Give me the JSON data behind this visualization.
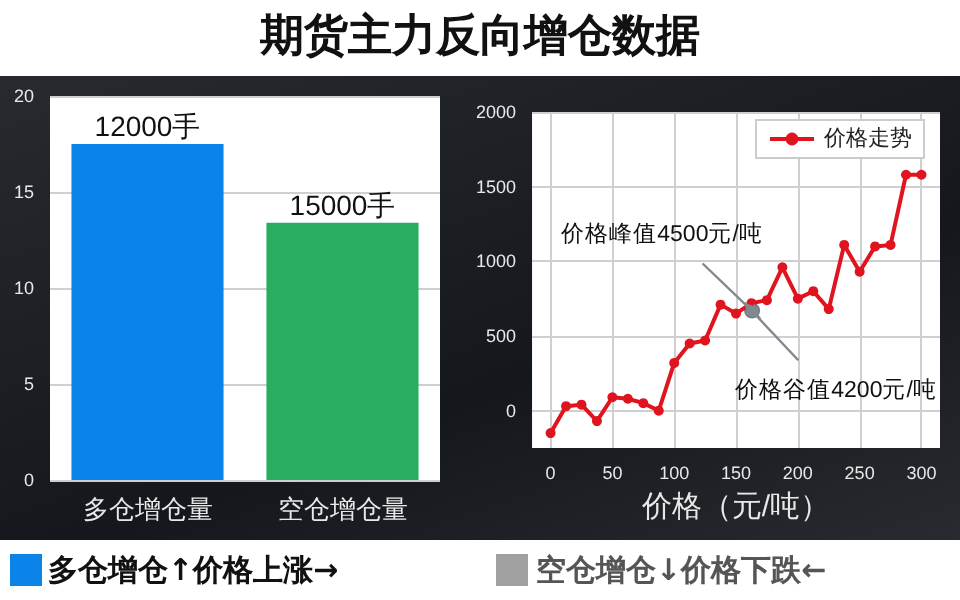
{
  "chart_data": [
    {
      "type": "bar",
      "title": "期货主力反向增仓数据",
      "categories": [
        "多仓增仓量",
        "空仓增仓量"
      ],
      "values": [
        17.5,
        13.4
      ],
      "colors": [
        "#0a84e8",
        "#27ae60"
      ],
      "ylim": [
        0,
        20
      ],
      "yticks": [
        0,
        5,
        10,
        15,
        20
      ],
      "grid": "y",
      "annotations": [
        {
          "text": "12000手",
          "x": "多仓增仓量",
          "y": 17.5
        },
        {
          "text": "15000手",
          "x": "空仓增仓量",
          "y": 13.4
        },
        "多仓增仓↑价格上涨→",
        "空仓增仓↓价格下跌←"
      ]
    },
    {
      "type": "line",
      "xlabel": "价格（元/吨）",
      "x": [
        0,
        12.5,
        25,
        37.5,
        50,
        62.5,
        75,
        87.5,
        100,
        112.5,
        125,
        137.5,
        150,
        162.5,
        175,
        187.5,
        200,
        212.5,
        225,
        237.5,
        250,
        262.5,
        275,
        287.5,
        300
      ],
      "series": [
        {
          "name": "价格走势",
          "color": "#e0141e",
          "values": [
            -150,
            30,
            40,
            -70,
            90,
            80,
            50,
            0,
            320,
            450,
            470,
            710,
            650,
            720,
            740,
            960,
            750,
            800,
            680,
            1110,
            930,
            1100,
            1110,
            1580,
            1580
          ]
        },
        {
          "type": "scatter",
          "color": "#56636c",
          "x": [
            163
          ],
          "values": [
            670
          ]
        }
      ],
      "xlim": [
        -15,
        315
      ],
      "xticks": [
        0,
        50,
        100,
        150,
        200,
        250,
        300
      ],
      "ylim": [
        -250,
        2000
      ],
      "yticks": [
        0,
        500,
        1000,
        1500,
        2000
      ],
      "grid": true,
      "legend": "top right",
      "marker": "circle",
      "annotations": [
        {
          "text": "价格峰值4500元/吨",
          "x": 163,
          "y": 670
        },
        {
          "text": "价格谷值4200元/吨",
          "x": 163,
          "y": 670
        }
      ]
    }
  ]
}
